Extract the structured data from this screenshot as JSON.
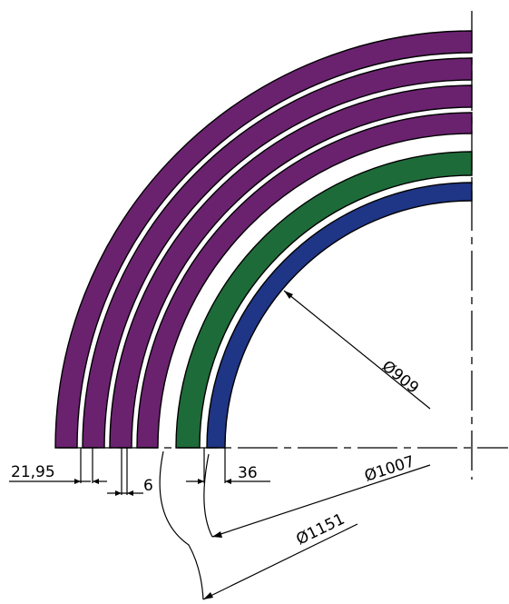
{
  "diagram": {
    "dimensions": {
      "radial_thickness": "21,95",
      "gap": "6",
      "inner_thickness": "36",
      "diameter_inner": "Ø909",
      "diameter_middle": "Ø1007",
      "diameter_outer": "Ø1151"
    },
    "colors": {
      "outer_layers": "#6a226f",
      "middle_layer": "#1e6b3a",
      "inner_layer": "#1f3585",
      "outline": "#000000",
      "background": "#ffffff"
    },
    "layers": [
      {
        "name": "inner-layer",
        "color_key": "inner_layer"
      },
      {
        "name": "middle-layer",
        "color_key": "middle_layer"
      },
      {
        "name": "outer-layer-1",
        "color_key": "outer_layers"
      },
      {
        "name": "outer-layer-2",
        "color_key": "outer_layers"
      },
      {
        "name": "outer-layer-3",
        "color_key": "outer_layers"
      },
      {
        "name": "outer-layer-4",
        "color_key": "outer_layers"
      }
    ]
  }
}
